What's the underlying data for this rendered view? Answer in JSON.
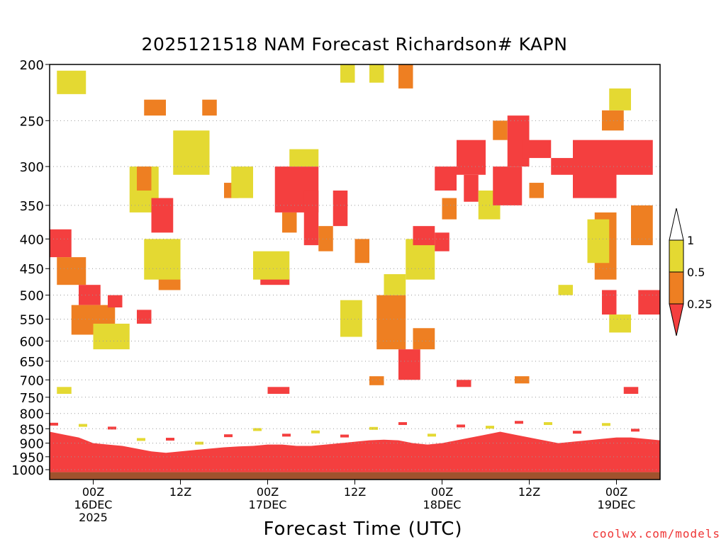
{
  "chart_data": {
    "type": "heatmap",
    "title": "2025121518 NAM Forecast Richardson# KAPN",
    "xlabel": "Forecast Time (UTC)",
    "ylabel": "",
    "credit": "coolwx.com/models",
    "y_ticks": [
      "200",
      "250",
      "300",
      "350",
      "400",
      "450",
      "500",
      "550",
      "600",
      "650",
      "700",
      "750",
      "800",
      "850",
      "900",
      "950",
      "1000"
    ],
    "y_range_hPa": [
      200,
      1040
    ],
    "x_range_forecast_hours": [
      0,
      84
    ],
    "x_ticks": [
      {
        "hour": 6,
        "line1": "00Z",
        "line2": "16DEC",
        "line3": "2025"
      },
      {
        "hour": 18,
        "line1": "12Z",
        "line2": "",
        "line3": ""
      },
      {
        "hour": 30,
        "line1": "00Z",
        "line2": "17DEC",
        "line3": ""
      },
      {
        "hour": 42,
        "line1": "12Z",
        "line2": "",
        "line3": ""
      },
      {
        "hour": 54,
        "line1": "00Z",
        "line2": "18DEC",
        "line3": ""
      },
      {
        "hour": 66,
        "line1": "12Z",
        "line2": "",
        "line3": ""
      },
      {
        "hour": 78,
        "line1": "00Z",
        "line2": "19DEC",
        "line3": ""
      }
    ],
    "legend": {
      "levels": [
        "1",
        "0.5",
        "0.25"
      ],
      "bins": [
        {
          "range": "> 1",
          "color": "#ffffff"
        },
        {
          "range": "0.5 - 1",
          "color": "#e4d932"
        },
        {
          "range": "0.25 - 0.5",
          "color": "#ee7f22"
        },
        {
          "range": "< 0.25",
          "color": "#f43f3f"
        }
      ]
    },
    "colors": {
      "white": "#ffffff",
      "yellow": "#e4d932",
      "orange": "#ee7f22",
      "red": "#f43f3f",
      "ground": "#a0522d"
    },
    "surface_pressure_hPa": 1010,
    "boundary_layer_top_hPa": [
      860,
      870,
      880,
      900,
      905,
      910,
      920,
      930,
      935,
      930,
      925,
      920,
      915,
      912,
      910,
      905,
      905,
      910,
      910,
      905,
      900,
      895,
      890,
      888,
      890,
      900,
      905,
      900,
      890,
      880,
      870,
      860,
      870,
      880,
      890,
      900,
      895,
      890,
      885,
      880,
      880,
      885,
      890
    ],
    "regions": [
      {
        "band": "yellow",
        "t0": 1,
        "t1": 5,
        "p0": 205,
        "p1": 225
      },
      {
        "band": "red",
        "t0": 0,
        "t1": 3,
        "p0": 385,
        "p1": 430
      },
      {
        "band": "orange",
        "t0": 1,
        "t1": 5,
        "p0": 430,
        "p1": 480
      },
      {
        "band": "red",
        "t0": 4,
        "t1": 7,
        "p0": 480,
        "p1": 520
      },
      {
        "band": "orange",
        "t0": 3,
        "t1": 9,
        "p0": 520,
        "p1": 585
      },
      {
        "band": "yellow",
        "t0": 6,
        "t1": 11,
        "p0": 560,
        "p1": 620
      },
      {
        "band": "red",
        "t0": 8,
        "t1": 10,
        "p0": 500,
        "p1": 525
      },
      {
        "band": "red",
        "t0": 12,
        "t1": 14,
        "p0": 530,
        "p1": 560
      },
      {
        "band": "yellow",
        "t0": 11,
        "t1": 15,
        "p0": 300,
        "p1": 360
      },
      {
        "band": "orange",
        "t0": 12,
        "t1": 14,
        "p0": 300,
        "p1": 330
      },
      {
        "band": "red",
        "t0": 14,
        "t1": 17,
        "p0": 340,
        "p1": 390
      },
      {
        "band": "red",
        "t0": 15,
        "t1": 17,
        "p0": 430,
        "p1": 460
      },
      {
        "band": "orange",
        "t0": 15,
        "t1": 18,
        "p0": 460,
        "p1": 490
      },
      {
        "band": "yellow",
        "t0": 13,
        "t1": 18,
        "p0": 400,
        "p1": 470
      },
      {
        "band": "orange",
        "t0": 13,
        "t1": 16,
        "p0": 230,
        "p1": 245
      },
      {
        "band": "red",
        "t0": 18,
        "t1": 21,
        "p0": 270,
        "p1": 295
      },
      {
        "band": "yellow",
        "t0": 17,
        "t1": 22,
        "p0": 260,
        "p1": 310
      },
      {
        "band": "orange",
        "t0": 21,
        "t1": 23,
        "p0": 230,
        "p1": 245
      },
      {
        "band": "orange",
        "t0": 24,
        "t1": 26,
        "p0": 320,
        "p1": 340
      },
      {
        "band": "yellow",
        "t0": 25,
        "t1": 28,
        "p0": 300,
        "p1": 340
      },
      {
        "band": "red",
        "t0": 29,
        "t1": 33,
        "p0": 450,
        "p1": 480
      },
      {
        "band": "yellow",
        "t0": 28,
        "t1": 33,
        "p0": 420,
        "p1": 470
      },
      {
        "band": "red",
        "t0": 31,
        "t1": 37,
        "p0": 300,
        "p1": 360
      },
      {
        "band": "orange",
        "t0": 32,
        "t1": 34,
        "p0": 360,
        "p1": 390
      },
      {
        "band": "yellow",
        "t0": 33,
        "t1": 37,
        "p0": 280,
        "p1": 300
      },
      {
        "band": "red",
        "t0": 35,
        "t1": 37,
        "p0": 330,
        "p1": 410
      },
      {
        "band": "orange",
        "t0": 37,
        "t1": 39,
        "p0": 380,
        "p1": 420
      },
      {
        "band": "red",
        "t0": 39,
        "t1": 41,
        "p0": 330,
        "p1": 380
      },
      {
        "band": "yellow",
        "t0": 40,
        "t1": 43,
        "p0": 510,
        "p1": 590
      },
      {
        "band": "orange",
        "t0": 42,
        "t1": 44,
        "p0": 400,
        "p1": 440
      },
      {
        "band": "yellow",
        "t0": 40,
        "t1": 42,
        "p0": 200,
        "p1": 215
      },
      {
        "band": "yellow",
        "t0": 44,
        "t1": 46,
        "p0": 200,
        "p1": 215
      },
      {
        "band": "orange",
        "t0": 45,
        "t1": 49,
        "p0": 500,
        "p1": 620
      },
      {
        "band": "yellow",
        "t0": 46,
        "t1": 49,
        "p0": 460,
        "p1": 500
      },
      {
        "band": "red",
        "t0": 48,
        "t1": 51,
        "p0": 620,
        "p1": 700
      },
      {
        "band": "orange",
        "t0": 48,
        "t1": 50,
        "p0": 200,
        "p1": 220
      },
      {
        "band": "yellow",
        "t0": 49,
        "t1": 53,
        "p0": 400,
        "p1": 470
      },
      {
        "band": "orange",
        "t0": 50,
        "t1": 53,
        "p0": 570,
        "p1": 620
      },
      {
        "band": "red",
        "t0": 50,
        "t1": 53,
        "p0": 380,
        "p1": 410
      },
      {
        "band": "red",
        "t0": 53,
        "t1": 56,
        "p0": 300,
        "p1": 330
      },
      {
        "band": "red",
        "t0": 53,
        "t1": 55,
        "p0": 390,
        "p1": 420
      },
      {
        "band": "orange",
        "t0": 54,
        "t1": 56,
        "p0": 340,
        "p1": 370
      },
      {
        "band": "red",
        "t0": 56,
        "t1": 60,
        "p0": 270,
        "p1": 310
      },
      {
        "band": "red",
        "t0": 57,
        "t1": 59,
        "p0": 310,
        "p1": 345
      },
      {
        "band": "yellow",
        "t0": 59,
        "t1": 62,
        "p0": 330,
        "p1": 370
      },
      {
        "band": "orange",
        "t0": 61,
        "t1": 63,
        "p0": 250,
        "p1": 270
      },
      {
        "band": "red",
        "t0": 61,
        "t1": 65,
        "p0": 300,
        "p1": 350
      },
      {
        "band": "red",
        "t0": 63,
        "t1": 66,
        "p0": 245,
        "p1": 300
      },
      {
        "band": "red",
        "t0": 65,
        "t1": 69,
        "p0": 270,
        "p1": 290
      },
      {
        "band": "orange",
        "t0": 66,
        "t1": 68,
        "p0": 320,
        "p1": 340
      },
      {
        "band": "red",
        "t0": 69,
        "t1": 72,
        "p0": 290,
        "p1": 310
      },
      {
        "band": "yellow",
        "t0": 70,
        "t1": 72,
        "p0": 480,
        "p1": 500
      },
      {
        "band": "red",
        "t0": 72,
        "t1": 78,
        "p0": 270,
        "p1": 340
      },
      {
        "band": "orange",
        "t0": 75,
        "t1": 78,
        "p0": 360,
        "p1": 470
      },
      {
        "band": "yellow",
        "t0": 74,
        "t1": 77,
        "p0": 370,
        "p1": 440
      },
      {
        "band": "orange",
        "t0": 76,
        "t1": 79,
        "p0": 240,
        "p1": 260
      },
      {
        "band": "yellow",
        "t0": 77,
        "t1": 80,
        "p0": 220,
        "p1": 240
      },
      {
        "band": "red",
        "t0": 78,
        "t1": 83,
        "p0": 270,
        "p1": 310
      },
      {
        "band": "orange",
        "t0": 80,
        "t1": 83,
        "p0": 350,
        "p1": 410
      },
      {
        "band": "red",
        "t0": 81,
        "t1": 84,
        "p0": 490,
        "p1": 540
      },
      {
        "band": "red",
        "t0": 76,
        "t1": 78,
        "p0": 490,
        "p1": 540
      },
      {
        "band": "yellow",
        "t0": 77,
        "t1": 80,
        "p0": 540,
        "p1": 580
      },
      {
        "band": "red",
        "t0": 30,
        "t1": 33,
        "p0": 720,
        "p1": 740
      },
      {
        "band": "yellow",
        "t0": 1,
        "t1": 3,
        "p0": 720,
        "p1": 740
      },
      {
        "band": "orange",
        "t0": 44,
        "t1": 46,
        "p0": 690,
        "p1": 715
      },
      {
        "band": "red",
        "t0": 56,
        "t1": 58,
        "p0": 700,
        "p1": 720
      },
      {
        "band": "orange",
        "t0": 64,
        "t1": 66,
        "p0": 690,
        "p1": 710
      },
      {
        "band": "red",
        "t0": 79,
        "t1": 81,
        "p0": 720,
        "p1": 740
      }
    ]
  }
}
